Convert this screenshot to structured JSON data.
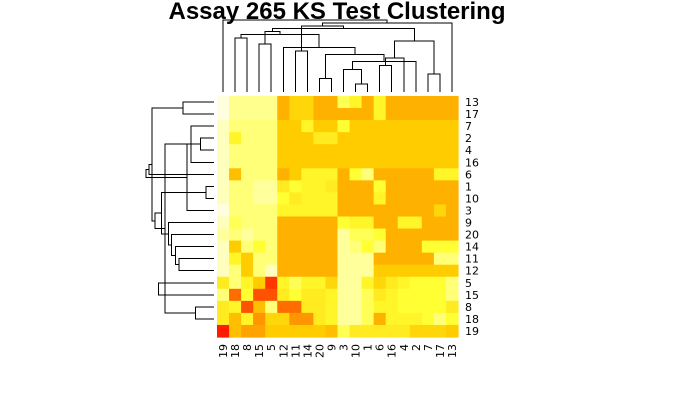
{
  "chart_data": {
    "type": "heatmap",
    "title": "Assay 265 KS Test Clustering",
    "row_labels": [
      "13",
      "17",
      "7",
      "2",
      "4",
      "16",
      "6",
      "1",
      "10",
      "3",
      "9",
      "20",
      "14",
      "11",
      "12",
      "5",
      "15",
      "8",
      "18",
      "19"
    ],
    "col_labels": [
      "19",
      "18",
      "8",
      "15",
      "5",
      "12",
      "11",
      "14",
      "20",
      "9",
      "3",
      "10",
      "1",
      "6",
      "16",
      "4",
      "2",
      "7",
      "17",
      "13"
    ],
    "values": [
      [
        0.0,
        0.12,
        0.12,
        0.12,
        0.12,
        0.6,
        0.45,
        0.45,
        0.6,
        0.6,
        0.2,
        0.3,
        0.6,
        0.3,
        0.6,
        0.6,
        0.6,
        0.6,
        0.6,
        0.6
      ],
      [
        0.0,
        0.12,
        0.12,
        0.12,
        0.12,
        0.6,
        0.45,
        0.45,
        0.6,
        0.6,
        0.6,
        0.6,
        0.6,
        0.3,
        0.6,
        0.6,
        0.6,
        0.6,
        0.6,
        0.6
      ],
      [
        0.05,
        0.15,
        0.15,
        0.15,
        0.15,
        0.5,
        0.5,
        0.3,
        0.5,
        0.5,
        0.25,
        0.5,
        0.5,
        0.5,
        0.5,
        0.5,
        0.5,
        0.5,
        0.5,
        0.5
      ],
      [
        0.05,
        0.3,
        0.15,
        0.15,
        0.15,
        0.5,
        0.5,
        0.5,
        0.35,
        0.35,
        0.5,
        0.5,
        0.5,
        0.5,
        0.5,
        0.5,
        0.5,
        0.5,
        0.5,
        0.5
      ],
      [
        0.05,
        0.15,
        0.15,
        0.15,
        0.15,
        0.5,
        0.5,
        0.5,
        0.5,
        0.5,
        0.5,
        0.5,
        0.5,
        0.5,
        0.5,
        0.5,
        0.5,
        0.5,
        0.5,
        0.5
      ],
      [
        0.05,
        0.15,
        0.15,
        0.15,
        0.15,
        0.5,
        0.5,
        0.5,
        0.5,
        0.5,
        0.5,
        0.5,
        0.5,
        0.5,
        0.5,
        0.5,
        0.5,
        0.5,
        0.5,
        0.5
      ],
      [
        0.05,
        0.55,
        0.15,
        0.15,
        0.15,
        0.6,
        0.5,
        0.3,
        0.3,
        0.3,
        0.6,
        0.25,
        0.15,
        0.6,
        0.6,
        0.6,
        0.6,
        0.6,
        0.3,
        0.3
      ],
      [
        0.05,
        0.15,
        0.15,
        0.1,
        0.1,
        0.35,
        0.25,
        0.3,
        0.3,
        0.35,
        0.6,
        0.6,
        0.6,
        0.25,
        0.6,
        0.6,
        0.6,
        0.6,
        0.6,
        0.6
      ],
      [
        0.05,
        0.15,
        0.15,
        0.1,
        0.1,
        0.25,
        0.35,
        0.3,
        0.3,
        0.3,
        0.6,
        0.6,
        0.6,
        0.3,
        0.6,
        0.6,
        0.6,
        0.6,
        0.6,
        0.6
      ],
      [
        0.0,
        0.15,
        0.15,
        0.15,
        0.15,
        0.3,
        0.3,
        0.3,
        0.3,
        0.3,
        0.6,
        0.6,
        0.6,
        0.6,
        0.6,
        0.6,
        0.6,
        0.6,
        0.45,
        0.6
      ],
      [
        0.05,
        0.2,
        0.15,
        0.15,
        0.15,
        0.6,
        0.6,
        0.6,
        0.6,
        0.6,
        0.25,
        0.3,
        0.3,
        0.6,
        0.6,
        0.3,
        0.3,
        0.6,
        0.6,
        0.6
      ],
      [
        0.1,
        0.15,
        0.1,
        0.15,
        0.15,
        0.6,
        0.6,
        0.6,
        0.6,
        0.6,
        0.1,
        0.2,
        0.2,
        0.25,
        0.6,
        0.6,
        0.6,
        0.6,
        0.6,
        0.6
      ],
      [
        0.05,
        0.5,
        0.15,
        0.25,
        0.15,
        0.6,
        0.6,
        0.6,
        0.6,
        0.6,
        0.1,
        0.15,
        0.25,
        0.15,
        0.6,
        0.6,
        0.6,
        0.25,
        0.25,
        0.25
      ],
      [
        0.05,
        0.3,
        0.5,
        0.15,
        0.15,
        0.6,
        0.6,
        0.6,
        0.6,
        0.6,
        0.1,
        0.1,
        0.1,
        0.6,
        0.6,
        0.6,
        0.6,
        0.6,
        0.15,
        0.15
      ],
      [
        0.05,
        0.15,
        0.5,
        0.15,
        0.05,
        0.6,
        0.6,
        0.6,
        0.6,
        0.6,
        0.1,
        0.1,
        0.1,
        0.5,
        0.5,
        0.5,
        0.5,
        0.5,
        0.5,
        0.5
      ],
      [
        0.35,
        0.15,
        0.3,
        0.5,
        0.9,
        0.3,
        0.2,
        0.3,
        0.3,
        0.45,
        0.1,
        0.1,
        0.3,
        0.45,
        0.35,
        0.3,
        0.25,
        0.25,
        0.25,
        0.15
      ],
      [
        0.15,
        0.8,
        0.25,
        0.85,
        0.85,
        0.35,
        0.25,
        0.35,
        0.35,
        0.3,
        0.1,
        0.1,
        0.2,
        0.35,
        0.3,
        0.25,
        0.25,
        0.25,
        0.25,
        0.15
      ],
      [
        0.35,
        0.3,
        0.85,
        0.55,
        0.15,
        0.8,
        0.8,
        0.35,
        0.35,
        0.3,
        0.1,
        0.1,
        0.2,
        0.3,
        0.3,
        0.25,
        0.25,
        0.25,
        0.25,
        0.35
      ],
      [
        0.35,
        0.55,
        0.3,
        0.7,
        0.45,
        0.45,
        0.7,
        0.7,
        0.35,
        0.3,
        0.1,
        0.1,
        0.2,
        0.6,
        0.3,
        0.3,
        0.3,
        0.25,
        0.15,
        0.25
      ],
      [
        0.95,
        0.55,
        0.65,
        0.65,
        0.5,
        0.5,
        0.5,
        0.5,
        0.5,
        0.55,
        0.2,
        0.35,
        0.35,
        0.35,
        0.35,
        0.35,
        0.45,
        0.45,
        0.45,
        0.5
      ]
    ],
    "color_scale": [
      "#ffffe0",
      "#ffff33",
      "#ffcc00",
      "#ff8800",
      "#ff0000"
    ],
    "row_dendrogram": [
      [
        7,
        8
      ],
      [
        3,
        4
      ],
      [
        17,
        18
      ],
      [
        2,
        5
      ],
      [
        9,
        21
      ],
      [
        0,
        1
      ],
      [
        13,
        14
      ],
      [
        12,
        26
      ],
      [
        11,
        27
      ],
      [
        10,
        28
      ],
      [
        22,
        23
      ],
      [
        29,
        20
      ],
      [
        15,
        16
      ],
      [
        31,
        30
      ],
      [
        33,
        25
      ],
      [
        34,
        6
      ],
      [
        24,
        35
      ],
      [
        37,
        32
      ],
      [
        38,
        19
      ]
    ],
    "col_dendrogram": [
      [
        11,
        12
      ],
      [
        8,
        9
      ],
      [
        17,
        18
      ],
      [
        10,
        20
      ],
      [
        13,
        14
      ],
      [
        23,
        16
      ],
      [
        24,
        15
      ],
      [
        25,
        21
      ],
      [
        6,
        7
      ],
      [
        27,
        5
      ],
      [
        3,
        4
      ],
      [
        22,
        26
      ],
      [
        1,
        2
      ],
      [
        32,
        29
      ],
      [
        33,
        30
      ],
      [
        34,
        31
      ],
      [
        28,
        35
      ],
      [
        36,
        19
      ],
      [
        37,
        0
      ]
    ]
  }
}
